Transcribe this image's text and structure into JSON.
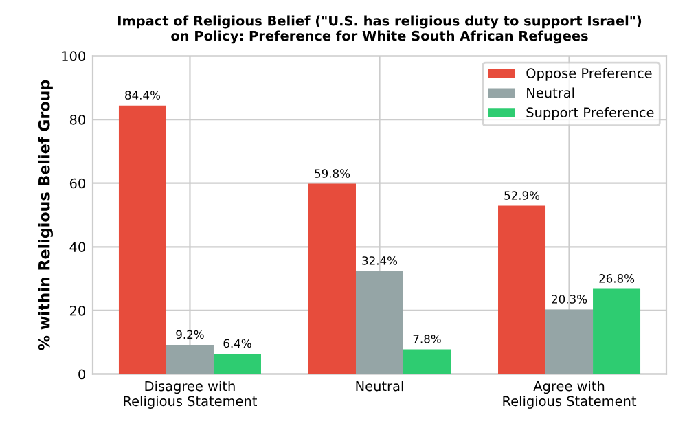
{
  "chart_data": {
    "type": "bar",
    "title": "Impact of Religious Belief (\"U.S. has religious duty to support Israel\")\non Policy: Preference for White South African Refugees",
    "ylabel": "% within Religious Belief Group",
    "categories": [
      "Disagree with\nReligious Statement",
      "Neutral",
      "Agree with\nReligious Statement"
    ],
    "series": [
      {
        "name": "Oppose Preference",
        "color": "#e74c3c",
        "values": [
          84.4,
          59.8,
          52.9
        ],
        "value_labels": [
          "84.4%",
          "59.8%",
          "52.9%"
        ]
      },
      {
        "name": "Neutral",
        "color": "#95a5a6",
        "values": [
          9.2,
          32.4,
          20.3
        ],
        "value_labels": [
          "9.2%",
          "32.4%",
          "20.3%"
        ]
      },
      {
        "name": "Support Preference",
        "color": "#2ecc71",
        "values": [
          6.4,
          7.8,
          26.8
        ],
        "value_labels": [
          "6.4%",
          "7.8%",
          "26.8%"
        ]
      }
    ],
    "ylim": [
      0,
      100
    ],
    "yticks": [
      0,
      20,
      40,
      60,
      80,
      100
    ],
    "grid": true,
    "legend": "top right"
  }
}
